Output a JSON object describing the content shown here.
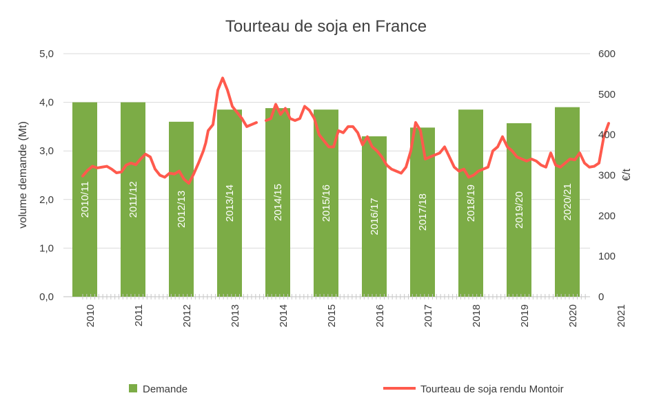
{
  "chart_data": {
    "type": "bar+line",
    "title": "Tourteau de soja en France",
    "ylabel_left": "volume demande (Mt)",
    "ylabel_right": "€/t",
    "ylim_left": [
      0,
      5
    ],
    "ylim_right": [
      0,
      600
    ],
    "y_ticks_left": [
      "0,0",
      "1,0",
      "2,0",
      "3,0",
      "4,0",
      "5,0"
    ],
    "y_ticks_right": [
      "0",
      "100",
      "200",
      "300",
      "400",
      "500",
      "600"
    ],
    "grid": true,
    "legend_position": "bottom",
    "bars": {
      "name": "Demande",
      "color": "#7cac46",
      "categories": [
        "2010/11",
        "2011/12",
        "2012/13",
        "2013/14",
        "2014/15",
        "2015/16",
        "2016/17",
        "2017/18",
        "2018/19",
        "2019/20",
        "2020/21"
      ],
      "values": [
        4.0,
        4.0,
        3.6,
        3.85,
        3.88,
        3.85,
        3.3,
        3.48,
        3.85,
        3.57,
        3.9
      ]
    },
    "line": {
      "name": "Tourteau de soja rendu Montoir",
      "color": "#ff5a4d",
      "x": [
        2010.0,
        2010.1,
        2010.2,
        2010.3,
        2010.4,
        2010.5,
        2010.6,
        2010.7,
        2010.8,
        2010.9,
        2011.0,
        2011.1,
        2011.2,
        2011.3,
        2011.4,
        2011.5,
        2011.6,
        2011.7,
        2011.8,
        2011.9,
        2012.0,
        2012.1,
        2012.2,
        2012.3,
        2012.4,
        2012.45,
        2012.5,
        2012.55,
        2012.6,
        2012.7,
        2012.8,
        2012.9,
        2013.0,
        2013.1,
        2013.2,
        2013.3,
        2013.4,
        2013.5,
        2013.6,
        2013.7,
        2013.8,
        2013.9,
        2014.0,
        2014.1,
        2014.2,
        2014.3,
        2014.4,
        2014.5,
        2014.6,
        2014.7,
        2014.8,
        2014.9,
        2015.0,
        2015.1,
        2015.2,
        2015.3,
        2015.4,
        2015.5,
        2015.6,
        2015.7,
        2015.8,
        2015.9,
        2016.0,
        2016.1,
        2016.2,
        2016.3,
        2016.4,
        2016.5,
        2016.6,
        2016.7,
        2016.8,
        2016.9,
        2017.0,
        2017.1,
        2017.2,
        2017.3,
        2017.4,
        2017.5,
        2017.6,
        2017.7,
        2017.8,
        2017.9,
        2018.0,
        2018.1,
        2018.2,
        2018.3,
        2018.4,
        2018.5,
        2018.6,
        2018.7,
        2018.8,
        2018.9,
        2019.0,
        2019.1,
        2019.2,
        2019.3,
        2019.4,
        2019.5,
        2019.6,
        2019.7,
        2019.8,
        2019.9,
        2020.0,
        2020.1,
        2020.2,
        2020.3,
        2020.4,
        2020.5,
        2020.6,
        2020.7,
        2020.8,
        2020.9
      ],
      "y": [
        298,
        312,
        322,
        318,
        320,
        322,
        315,
        306,
        308,
        325,
        330,
        326,
        340,
        352,
        345,
        315,
        300,
        295,
        305,
        303,
        310,
        290,
        280,
        303,
        330,
        345,
        360,
        380,
        410,
        425,
        510,
        540,
        510,
        470,
        455,
        440,
        420,
        425,
        430,
        null,
        435,
        440,
        475,
        450,
        465,
        440,
        435,
        440,
        470,
        460,
        440,
        400,
        385,
        370,
        370,
        410,
        405,
        420,
        420,
        405,
        375,
        395,
        370,
        360,
        345,
        325,
        315,
        310,
        305,
        320,
        360,
        430,
        410,
        340,
        345,
        350,
        355,
        370,
        345,
        320,
        310,
        315,
        295,
        300,
        310,
        315,
        320,
        360,
        370,
        395,
        370,
        360,
        345,
        340,
        335,
        340,
        335,
        325,
        320,
        355,
        325,
        320,
        330,
        340,
        338,
        355,
        330,
        320,
        322,
        330,
        395,
        428
      ]
    }
  }
}
